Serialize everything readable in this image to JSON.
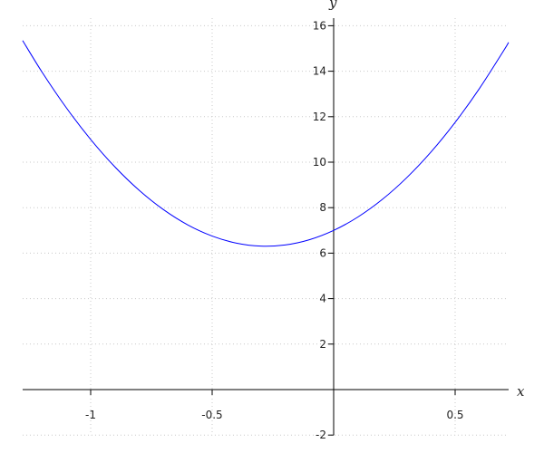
{
  "chart_data": {
    "type": "line",
    "title": "",
    "xlabel": "x",
    "ylabel": "y",
    "xlim": [
      -1.28,
      0.72
    ],
    "ylim": [
      -2,
      16.3
    ],
    "grid": true,
    "x_ticks": [
      {
        "value": -1,
        "label": "-1"
      },
      {
        "value": -0.5,
        "label": "-0.5"
      },
      {
        "value": 0.5,
        "label": "0.5"
      }
    ],
    "y_ticks": [
      {
        "value": -2,
        "label": "-2"
      },
      {
        "value": 2,
        "label": "2"
      },
      {
        "value": 4,
        "label": "4"
      },
      {
        "value": 6,
        "label": "6"
      },
      {
        "value": 8,
        "label": "8"
      },
      {
        "value": 10,
        "label": "10"
      },
      {
        "value": 12,
        "label": "12"
      },
      {
        "value": 14,
        "label": "14"
      },
      {
        "value": 16,
        "label": "16"
      }
    ],
    "series": [
      {
        "color": "#0000ff",
        "x": [
          -1.28,
          -1.2,
          -1.1,
          -1.0,
          -0.9,
          -0.8,
          -0.7,
          -0.6,
          -0.5,
          -0.4,
          -0.3,
          -0.2,
          -0.1,
          0,
          0.1,
          0.2,
          0.3,
          0.4,
          0.5,
          0.6,
          0.7,
          0.72
        ],
        "y": [
          15.35,
          13.96,
          12.39,
          11.0,
          9.79,
          8.76,
          7.91,
          7.24,
          6.75,
          6.44,
          6.31,
          6.36,
          6.59,
          7.0,
          7.59,
          8.36,
          9.31,
          10.44,
          11.75,
          13.24,
          14.91,
          15.27
        ]
      }
    ]
  }
}
